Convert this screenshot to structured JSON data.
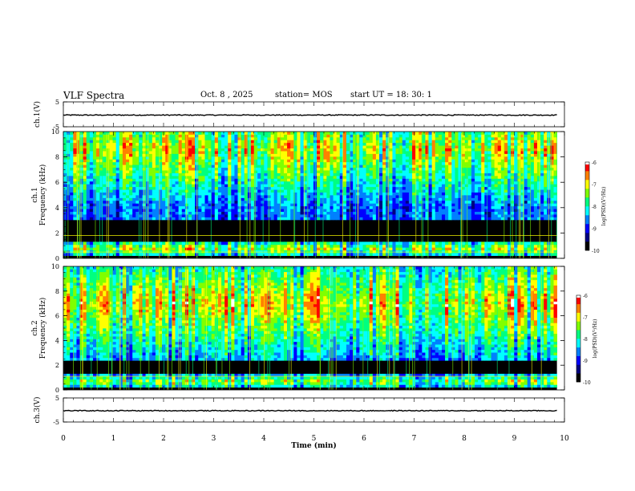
{
  "header": {
    "title": "VLF Spectra",
    "date": "Oct. 8 , 2025",
    "station": "station= MOS",
    "start": "start UT = 18: 30: 1"
  },
  "colormap": [
    "#000000",
    "#000080",
    "#0000ff",
    "#0080ff",
    "#00ffff",
    "#00ff80",
    "#80ff00",
    "#ffff00",
    "#ff8000",
    "#ff0000",
    "#ffffff"
  ],
  "chart_data": [
    {
      "type": "line",
      "id": "ch1-waveform",
      "ylabel": "ch.1(V)",
      "ylim": [
        -5,
        5
      ],
      "yticks": [
        "5",
        "-5"
      ],
      "xlim": [
        0,
        10
      ],
      "level": -0.3
    },
    {
      "type": "heatmap",
      "id": "ch1-spectrogram",
      "ylabel": "ch.1 Frequency (kHz)",
      "ylim": [
        0,
        10
      ],
      "yticks": [
        "0",
        "2",
        "4",
        "6",
        "8",
        "10"
      ],
      "xlim": [
        0,
        10
      ],
      "data_end_min": 9.85,
      "colorbar": {
        "label": "log(PSD)(V²/Hz)",
        "range": [
          -10,
          -6
        ],
        "ticks": [
          "-6",
          "-7",
          "-8",
          "-9",
          "-10"
        ]
      },
      "bands_khz": [
        {
          "from": 3.0,
          "to": 9.9,
          "peak_khz": 8.6,
          "level": 0.55
        },
        {
          "from": 0.2,
          "to": 1.4,
          "peak_khz": 0.8,
          "level": 0.5
        }
      ],
      "lines_khz": [
        0.5,
        1.8
      ]
    },
    {
      "type": "heatmap",
      "id": "ch2-spectrogram",
      "ylabel": "ch.2 Frequency (kHz)",
      "ylim": [
        0,
        10
      ],
      "yticks": [
        "0",
        "2",
        "4",
        "6",
        "8",
        "10"
      ],
      "xlim": [
        0,
        10
      ],
      "data_end_min": 9.85,
      "colorbar": {
        "label": "log(PSD)(V²/Hz)",
        "range": [
          -10,
          -6
        ],
        "ticks": [
          "-6",
          "-7",
          "-8",
          "-9",
          "-10"
        ]
      },
      "bands_khz": [
        {
          "from": 2.5,
          "to": 9.9,
          "peak_khz": 7.0,
          "level": 0.6
        },
        {
          "from": 0.2,
          "to": 1.3,
          "peak_khz": 0.7,
          "level": 0.45
        }
      ],
      "lines_khz": [
        1.1
      ]
    },
    {
      "type": "line",
      "id": "ch3-waveform",
      "ylabel": "ch.3(V)",
      "ylim": [
        -5,
        5
      ],
      "yticks": [
        "5",
        "-5"
      ],
      "xlim": [
        0,
        10
      ],
      "level": -0.3
    }
  ],
  "xaxis": {
    "label": "Time (min)",
    "ticks": [
      0,
      1,
      2,
      3,
      4,
      5,
      6,
      7,
      8,
      9,
      10
    ]
  }
}
